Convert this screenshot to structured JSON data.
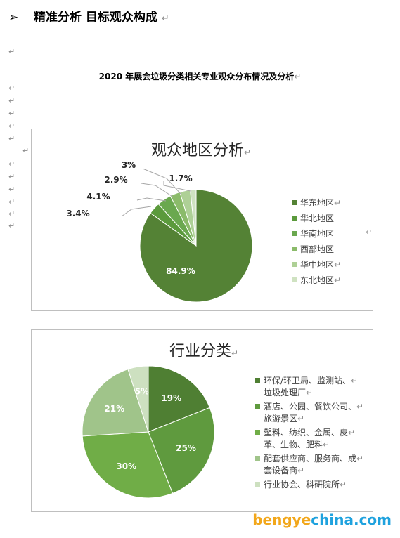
{
  "heading": {
    "bullet": "➢",
    "text": "精准分析  目标观众构成",
    "para_mark": "↵"
  },
  "para_mark": "↵",
  "doc_title": "2020 年展会垃圾分类相关专业观众分布情况及分析",
  "chart_data": [
    {
      "type": "pie",
      "title": "观众地区分析",
      "legend_position": "right",
      "categories": [
        "华东地区",
        "华北地区",
        "华南地区",
        "西部地区",
        "华中地区",
        "东北地区"
      ],
      "values": [
        84.9,
        3.4,
        4.1,
        2.9,
        3.0,
        1.7
      ],
      "value_labels": [
        "84.9%",
        "3.4%",
        "4.1%",
        "2.9%",
        "3%",
        "1.7%"
      ],
      "colors": [
        "#548235",
        "#5b9a3c",
        "#6aa84f",
        "#8bbb6a",
        "#aed096",
        "#cfe2c1"
      ]
    },
    {
      "type": "pie",
      "title": "行业分类",
      "legend_position": "right",
      "categories": [
        "环保/环卫局、监测站、垃圾处理厂",
        "酒店、公园、餐饮公司、旅游景区",
        "塑料、纺织、金属、皮革、生物、肥料",
        "配套供应商、服务商、成套设备商",
        "行业协会、科研院所"
      ],
      "legend_lines": [
        [
          "环保/环卫局、监测站、",
          "垃圾处理厂"
        ],
        [
          "酒店、公园、餐饮公司、",
          "旅游景区"
        ],
        [
          "塑料、纺织、金属、皮",
          "革、生物、肥料"
        ],
        [
          "配套供应商、服务商、成",
          "套设备商"
        ],
        [
          "行业协会、科研院所"
        ]
      ],
      "values": [
        19,
        25,
        30,
        21,
        5
      ],
      "value_labels": [
        "19%",
        "25%",
        "30%",
        "21%",
        "5%"
      ],
      "colors": [
        "#4f7f33",
        "#5f9a3e",
        "#70ad47",
        "#a0c48a",
        "#cde0c0"
      ]
    }
  ],
  "watermark": {
    "part1": "bengye",
    "part2": "china.com"
  }
}
